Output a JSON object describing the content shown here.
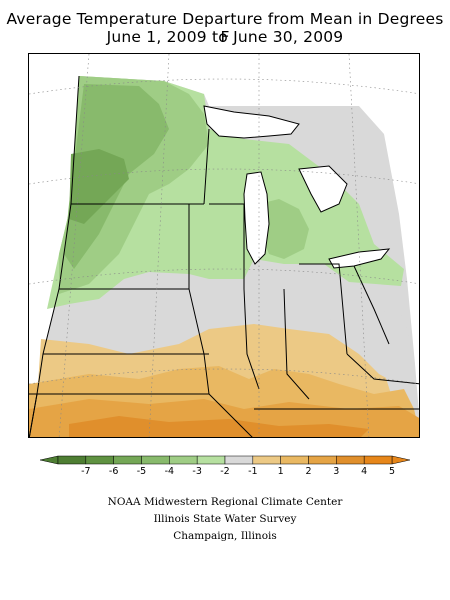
{
  "title_line1": "Average Temperature Departure from Mean in Degrees F",
  "title_line2": "June 1, 2009 to June 30, 2009",
  "legend": {
    "labels": [
      "-7",
      "-6",
      "-5",
      "-4",
      "-3",
      "-2",
      "-1",
      "1",
      "2",
      "3",
      "4",
      "5"
    ],
    "colors": [
      "#4e7e33",
      "#5f9241",
      "#74a756",
      "#88ba6c",
      "#9fcd85",
      "#b6e0a0",
      "#d9d9d9",
      "#ecc985",
      "#e9b862",
      "#e5a445",
      "#e08f2c",
      "#e6861a"
    ]
  },
  "credits": {
    "line1": "NOAA Midwestern Regional Climate Center",
    "line2": "Illinois State Water Survey",
    "line3": "Champaign, Illinois"
  }
}
